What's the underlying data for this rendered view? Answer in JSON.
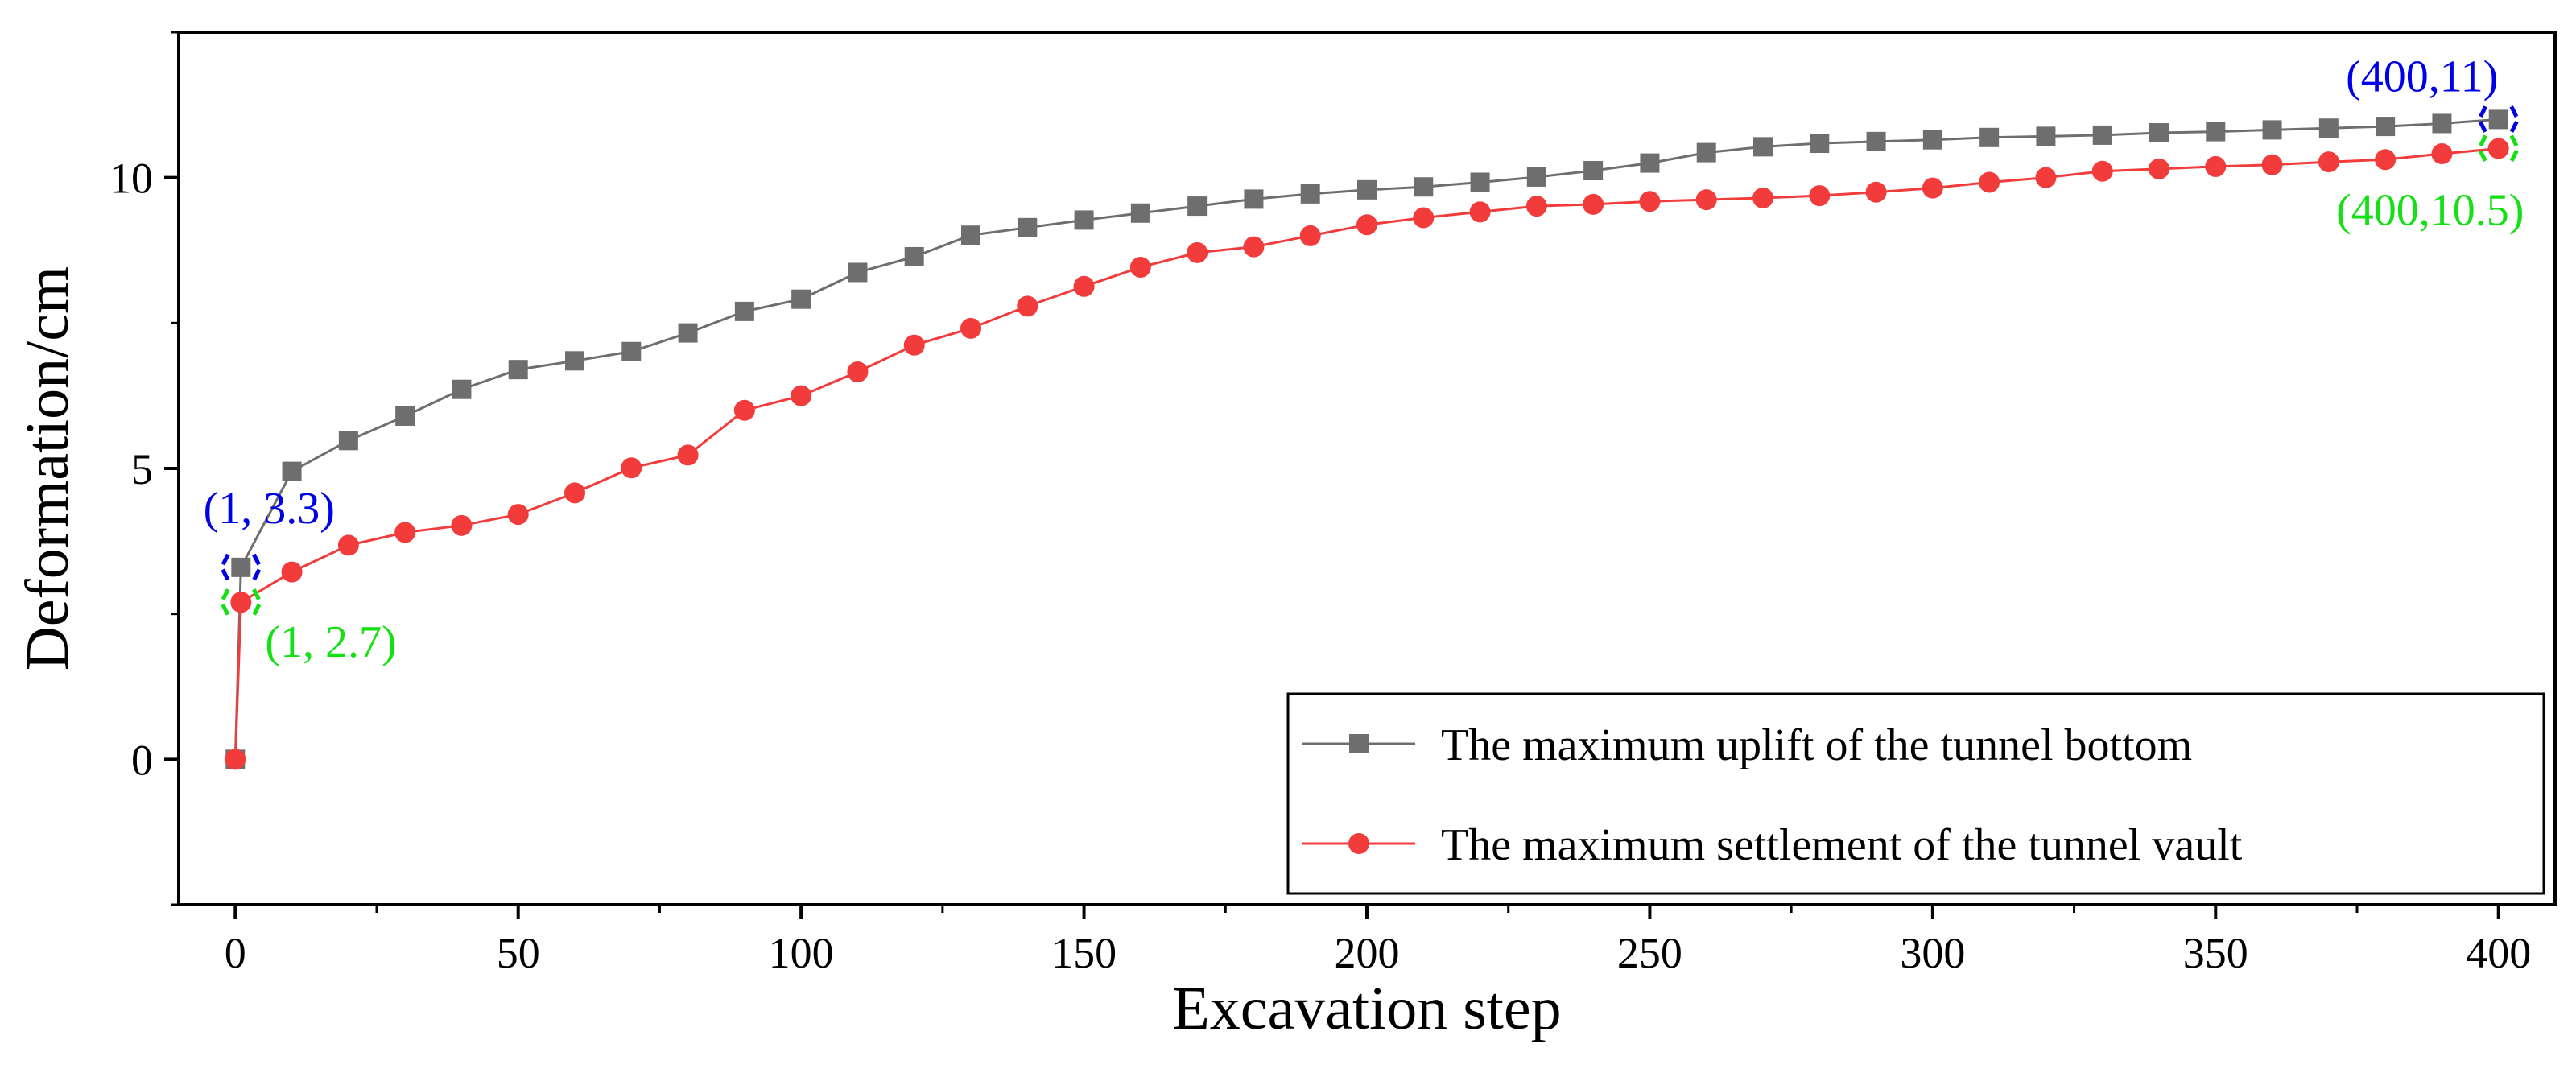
{
  "chart_data": {
    "type": "line",
    "xlabel": "Excavation step",
    "ylabel": "Deformation/cm",
    "xlim": [
      -10,
      410
    ],
    "ylim": [
      -2.5,
      12.5
    ],
    "x_ticks": [
      0,
      50,
      100,
      150,
      200,
      250,
      300,
      350,
      400
    ],
    "x_tick_labels": [
      "0",
      "50",
      "100",
      "150",
      "200",
      "250",
      "300",
      "350",
      "400"
    ],
    "y_ticks": [
      0,
      5,
      10
    ],
    "y_tick_labels": [
      "0",
      "5",
      "10"
    ],
    "grid": false,
    "legend_position": "bottom-right",
    "series": [
      {
        "name": "The maximum uplift of the tunnel bottom",
        "color": "#6e6e6e",
        "marker": "square",
        "x": [
          0,
          1,
          10,
          20,
          30,
          40,
          50,
          60,
          70,
          80,
          90,
          100,
          110,
          120,
          130,
          140,
          150,
          160,
          170,
          180,
          190,
          200,
          210,
          220,
          230,
          240,
          250,
          260,
          270,
          280,
          290,
          300,
          310,
          320,
          330,
          340,
          350,
          360,
          370,
          380,
          390,
          400
        ],
        "values": [
          0,
          3.3,
          4.95,
          5.48,
          5.9,
          6.36,
          6.7,
          6.85,
          7.01,
          7.33,
          7.7,
          7.91,
          8.37,
          8.64,
          9.01,
          9.14,
          9.27,
          9.39,
          9.51,
          9.63,
          9.72,
          9.79,
          9.84,
          9.92,
          10.01,
          10.12,
          10.25,
          10.43,
          10.53,
          10.59,
          10.62,
          10.65,
          10.69,
          10.71,
          10.73,
          10.77,
          10.79,
          10.82,
          10.85,
          10.88,
          10.93,
          11.0
        ]
      },
      {
        "name": "The maximum settlement of the tunnel vault",
        "color": "#f23c3c",
        "marker": "circle",
        "x": [
          0,
          1,
          10,
          20,
          30,
          40,
          50,
          60,
          70,
          80,
          90,
          100,
          110,
          120,
          130,
          140,
          150,
          160,
          170,
          180,
          190,
          200,
          210,
          220,
          230,
          240,
          250,
          260,
          270,
          280,
          290,
          300,
          310,
          320,
          330,
          340,
          350,
          360,
          370,
          380,
          390,
          400
        ],
        "values": [
          0,
          2.7,
          3.22,
          3.68,
          3.9,
          4.02,
          4.21,
          4.58,
          5.01,
          5.23,
          6.0,
          6.25,
          6.66,
          7.12,
          7.41,
          7.79,
          8.13,
          8.46,
          8.71,
          8.81,
          9.0,
          9.19,
          9.31,
          9.41,
          9.51,
          9.54,
          9.59,
          9.62,
          9.65,
          9.69,
          9.75,
          9.82,
          9.92,
          10.0,
          10.11,
          10.15,
          10.19,
          10.22,
          10.27,
          10.31,
          10.41,
          10.5
        ]
      }
    ],
    "annotations": [
      {
        "text": "(1, 3.3)",
        "color": "#0000e6",
        "x": 1,
        "y": 3.3,
        "anchor": "upper-left"
      },
      {
        "text": "(1, 2.7)",
        "color": "#14e014",
        "x": 1,
        "y": 2.7,
        "anchor": "lower-right"
      },
      {
        "text": "(400,11)",
        "color": "#0000e6",
        "x": 400,
        "y": 11.0,
        "anchor": "upper-left"
      },
      {
        "text": "(400,10.5)",
        "color": "#14e014",
        "x": 400,
        "y": 10.5,
        "anchor": "lower-left"
      }
    ]
  }
}
